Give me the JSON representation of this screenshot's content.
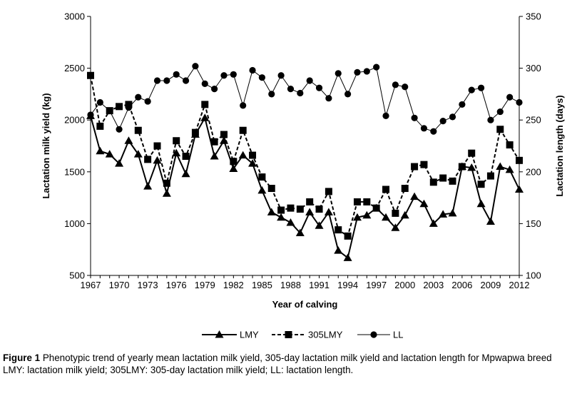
{
  "chart_data": {
    "type": "line",
    "title": "",
    "xlabel": "Year of calving",
    "ylabel_left": "Lactation milk yield (kg)",
    "ylabel_right": "Lactation length (days)",
    "x": [
      1967,
      1968,
      1969,
      1970,
      1971,
      1972,
      1973,
      1974,
      1975,
      1976,
      1977,
      1978,
      1979,
      1980,
      1981,
      1982,
      1983,
      1984,
      1985,
      1986,
      1987,
      1988,
      1989,
      1990,
      1991,
      1992,
      1993,
      1994,
      1995,
      1996,
      1997,
      1998,
      1999,
      2000,
      2001,
      2002,
      2003,
      2004,
      2005,
      2006,
      2007,
      2008,
      2009,
      2010,
      2011,
      2012
    ],
    "xticks": [
      "1967",
      "1970",
      "1973",
      "1976",
      "1979",
      "1982",
      "1985",
      "1988",
      "1991",
      "1994",
      "1997",
      "2000",
      "2003",
      "2006",
      "2009",
      "2012"
    ],
    "ylim_left": [
      500,
      3000
    ],
    "yticks_left": [
      "500",
      "1000",
      "1500",
      "2000",
      "2500",
      "3000"
    ],
    "ylim_right": [
      100,
      350
    ],
    "yticks_right": [
      "100",
      "150",
      "200",
      "250",
      "300",
      "350"
    ],
    "series": [
      {
        "name": "LMY",
        "axis": "left",
        "marker": "triangle",
        "line": "solid",
        "values": [
          2040,
          1700,
          1670,
          1580,
          1800,
          1670,
          1360,
          1610,
          1290,
          1680,
          1480,
          1860,
          2020,
          1650,
          1800,
          1530,
          1660,
          1580,
          1320,
          1110,
          1060,
          1010,
          910,
          1110,
          980,
          1110,
          740,
          670,
          1060,
          1080,
          1150,
          1060,
          960,
          1080,
          1260,
          1190,
          1000,
          1090,
          1100,
          1550,
          1540,
          1190,
          1020,
          1550,
          1520,
          1330
        ]
      },
      {
        "name": "305LMY",
        "axis": "left",
        "marker": "square",
        "line": "dashed",
        "values": [
          2430,
          1940,
          2090,
          2130,
          2150,
          1900,
          1620,
          1750,
          1390,
          1800,
          1650,
          1880,
          2150,
          1790,
          1860,
          1600,
          1900,
          1660,
          1450,
          1340,
          1130,
          1150,
          1140,
          1210,
          1140,
          1310,
          940,
          880,
          1210,
          1210,
          1150,
          1330,
          1100,
          1340,
          1550,
          1570,
          1400,
          1440,
          1410,
          1550,
          1680,
          1380,
          1460,
          1910,
          1760,
          1610
        ]
      },
      {
        "name": "LL",
        "axis": "right",
        "marker": "circle",
        "line": "solid",
        "values": [
          255,
          267,
          259,
          241,
          262,
          272,
          268,
          288,
          288,
          294,
          288,
          302,
          285,
          280,
          293,
          294,
          264,
          298,
          291,
          275,
          293,
          280,
          276,
          288,
          281,
          271,
          295,
          275,
          296,
          297,
          301,
          254,
          284,
          282,
          252,
          242,
          239,
          249,
          253,
          265,
          279,
          281,
          250,
          258,
          272,
          267
        ]
      }
    ],
    "legend": [
      "LMY",
      "305LMY",
      "LL"
    ],
    "legend_position": "bottom"
  },
  "caption": {
    "label": "Figure 1",
    "text": "Phenotypic trend of yearly mean lactation milk yield, 305-day lactation milk yield and lactation length for Mpwapwa breed",
    "note": "LMY: lactation milk yield; 305LMY: 305-day lactation milk yield; LL: lactation length."
  }
}
